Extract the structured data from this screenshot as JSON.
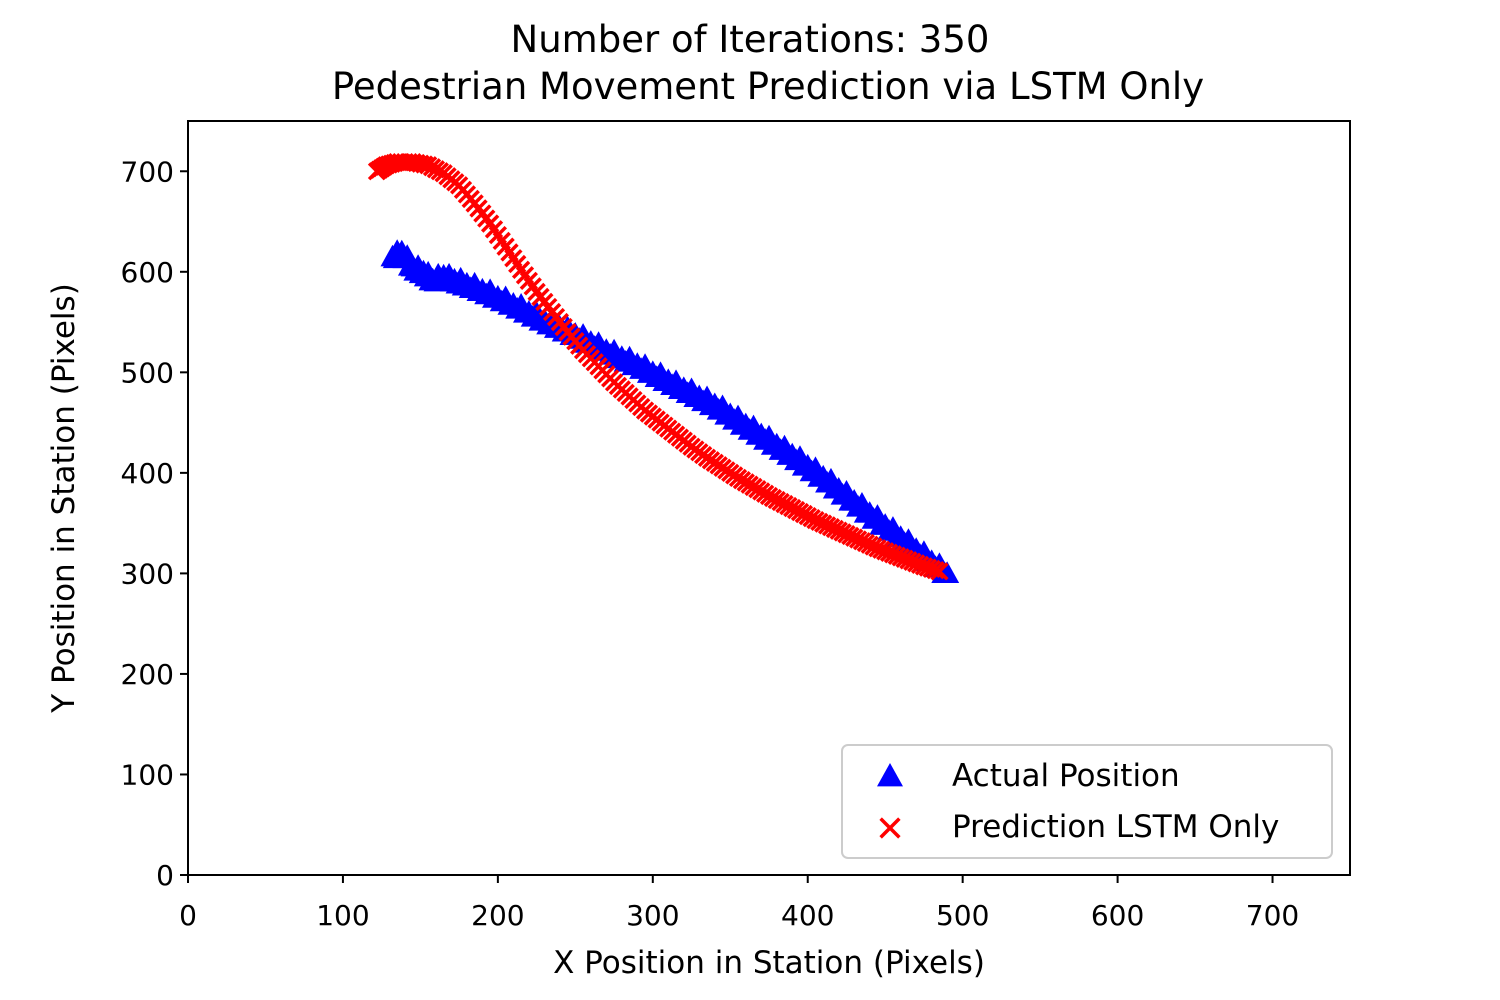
{
  "chart_data": {
    "type": "scatter",
    "title": "Number of Iterations: 350",
    "subtitle": "Pedestrian Movement Prediction via LSTM Only",
    "xlabel": "X Position in Station (Pixels)",
    "ylabel": "Y Position in Station (Pixels)",
    "xlim": [
      0,
      750
    ],
    "ylim": [
      0,
      750
    ],
    "xticks": [
      0,
      100,
      200,
      300,
      400,
      500,
      600,
      700
    ],
    "yticks": [
      0,
      100,
      200,
      300,
      400,
      500,
      600,
      700
    ],
    "xtick_labels": [
      "0",
      "100",
      "200",
      "300",
      "400",
      "500",
      "600",
      "700"
    ],
    "ytick_labels": [
      "0",
      "100",
      "200",
      "300",
      "400",
      "500",
      "600",
      "700"
    ],
    "grid": false,
    "legend_position": "lower-right",
    "series": [
      {
        "name": "Actual Position",
        "marker": "triangle",
        "color": "#0000ff",
        "points": [
          [
            132,
            615
          ],
          [
            138,
            620
          ],
          [
            145,
            605
          ],
          [
            152,
            600
          ],
          [
            158,
            592
          ],
          [
            165,
            596
          ],
          [
            172,
            592
          ],
          [
            180,
            588
          ],
          [
            190,
            582
          ],
          [
            200,
            575
          ],
          [
            210,
            568
          ],
          [
            220,
            560
          ],
          [
            230,
            552
          ],
          [
            240,
            545
          ],
          [
            250,
            538
          ],
          [
            260,
            530
          ],
          [
            270,
            522
          ],
          [
            280,
            515
          ],
          [
            290,
            508
          ],
          [
            300,
            500
          ],
          [
            310,
            492
          ],
          [
            320,
            484
          ],
          [
            330,
            476
          ],
          [
            340,
            468
          ],
          [
            350,
            458
          ],
          [
            360,
            448
          ],
          [
            370,
            438
          ],
          [
            380,
            428
          ],
          [
            390,
            418
          ],
          [
            400,
            407
          ],
          [
            410,
            396
          ],
          [
            420,
            384
          ],
          [
            430,
            372
          ],
          [
            440,
            360
          ],
          [
            450,
            348
          ],
          [
            460,
            336
          ],
          [
            470,
            324
          ],
          [
            480,
            312
          ],
          [
            490,
            300
          ]
        ]
      },
      {
        "name": "Prediction LSTM Only",
        "marker": "x",
        "color": "#ff0000",
        "points": [
          [
            122,
            700
          ],
          [
            128,
            706
          ],
          [
            135,
            709
          ],
          [
            145,
            709
          ],
          [
            155,
            706
          ],
          [
            165,
            698
          ],
          [
            175,
            686
          ],
          [
            185,
            668
          ],
          [
            195,
            648
          ],
          [
            205,
            625
          ],
          [
            215,
            602
          ],
          [
            225,
            580
          ],
          [
            235,
            560
          ],
          [
            245,
            540
          ],
          [
            255,
            522
          ],
          [
            265,
            506
          ],
          [
            275,
            490
          ],
          [
            285,
            476
          ],
          [
            295,
            462
          ],
          [
            305,
            450
          ],
          [
            315,
            438
          ],
          [
            325,
            426
          ],
          [
            335,
            415
          ],
          [
            345,
            405
          ],
          [
            355,
            395
          ],
          [
            365,
            386
          ],
          [
            375,
            377
          ],
          [
            385,
            369
          ],
          [
            395,
            361
          ],
          [
            405,
            353
          ],
          [
            415,
            346
          ],
          [
            425,
            339
          ],
          [
            435,
            332
          ],
          [
            445,
            325
          ],
          [
            455,
            319
          ],
          [
            465,
            313
          ],
          [
            475,
            307
          ],
          [
            485,
            302
          ]
        ]
      }
    ]
  }
}
